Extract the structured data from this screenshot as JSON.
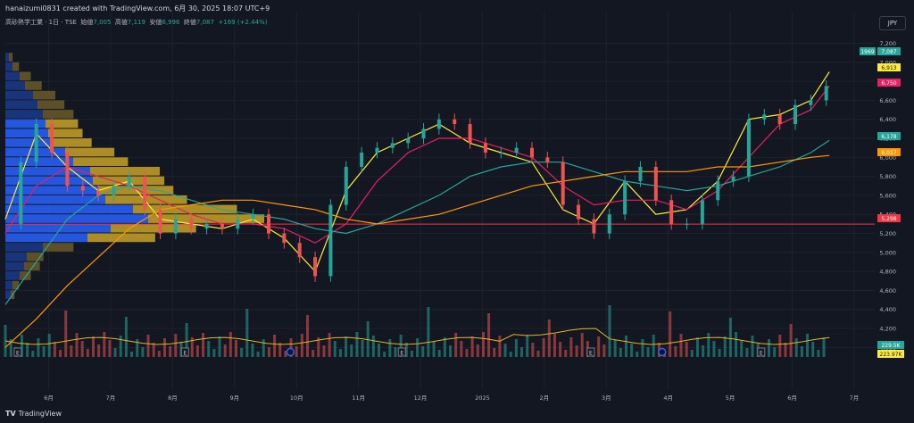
{
  "header": {
    "title": "hanaizumi0831 created with TradingView.com, 6月 30, 2025 18:07 UTC+9"
  },
  "symbol": {
    "name": "高砂熱学工業 · 1日 · TSE",
    "open_label": "始値",
    "open": "7,005",
    "high_label": "高値",
    "high": "7,119",
    "low_label": "安値",
    "low": "6,996",
    "close_label": "終値",
    "close": "7,087",
    "change": "+169 (+2.44%)"
  },
  "currency": "JPY",
  "footer": {
    "brand": "TradingView"
  },
  "colors": {
    "background": "#131722",
    "up": "#26a69a",
    "down": "#ef5350",
    "ma_fast": "#ffeb3b",
    "ma_mid": "#e91e63",
    "ma_slow": "#26a69a",
    "ma_long": "#ff9800",
    "hline": "#f23645",
    "volume_ma": "#e6b422"
  },
  "chart_data": {
    "type": "line",
    "title": "高砂熱学工業 · 1日 · TSE",
    "y_ticks": [
      4000,
      4200,
      4400,
      4600,
      4800,
      5000,
      5200,
      5400,
      5600,
      5800,
      6000,
      6200,
      6400,
      6600,
      6800,
      7000,
      7200
    ],
    "y_tick_labels": [
      "4,000",
      "4,200",
      "4,400",
      "4,600",
      "4,800",
      "5,000",
      "5,200",
      "5,400",
      "5,600",
      "5,800",
      "6,000",
      "6,200",
      "6,400",
      "6,600",
      "6,800",
      "7,000",
      "7,200"
    ],
    "ylim": [
      3900,
      7280
    ],
    "x_ticks": [
      "6月",
      "7月",
      "8月",
      "9月",
      "10月",
      "11月",
      "12月",
      "2025",
      "2月",
      "3月",
      "4月",
      "5月",
      "6月",
      "7月"
    ],
    "xlim": [
      0,
      13.6
    ],
    "close_series": {
      "name": "Close",
      "x": [
        0,
        0.25,
        0.5,
        0.75,
        1,
        1.25,
        1.5,
        1.75,
        2,
        2.25,
        2.5,
        2.75,
        3,
        3.25,
        3.5,
        3.75,
        4,
        4.25,
        4.5,
        4.75,
        5,
        5.25,
        5.5,
        5.75,
        6,
        6.25,
        6.5,
        6.75,
        7,
        7.25,
        7.5,
        7.75,
        8,
        8.25,
        8.5,
        8.75,
        9,
        9.25,
        9.5,
        9.75,
        10,
        10.25,
        10.5,
        10.75,
        11,
        11.25,
        11.5,
        11.75,
        12,
        12.25,
        12.5,
        12.75,
        13,
        13.25
      ],
      "values": [
        5300,
        5950,
        6350,
        6050,
        5700,
        5650,
        5600,
        5700,
        5800,
        5450,
        5200,
        5350,
        5250,
        5300,
        5250,
        5350,
        5400,
        5200,
        5100,
        4950,
        4750,
        5500,
        5900,
        6050,
        6100,
        6150,
        6200,
        6300,
        6400,
        6350,
        6150,
        6050,
        6050,
        6100,
        6000,
        5950,
        5500,
        5350,
        5200,
        5400,
        5750,
        5900,
        5550,
        5300,
        5300,
        5550,
        5750,
        5800,
        6400,
        6450,
        6350,
        6550,
        6600,
        6750
      ]
    },
    "series": [
      {
        "name": "MA fast",
        "color": "#ffeb3b",
        "x": [
          0,
          0.5,
          1,
          1.5,
          2,
          2.5,
          3,
          3.5,
          4,
          4.5,
          5,
          5.5,
          6,
          6.5,
          7,
          7.5,
          8,
          8.5,
          9,
          9.5,
          10,
          10.5,
          11,
          11.5,
          12,
          12.5,
          13,
          13.3
        ],
        "values": [
          5350,
          6250,
          5900,
          5650,
          5750,
          5350,
          5300,
          5250,
          5350,
          5150,
          4800,
          5650,
          6050,
          6200,
          6350,
          6150,
          6050,
          5950,
          5450,
          5300,
          5750,
          5400,
          5450,
          5750,
          6400,
          6450,
          6600,
          6900
        ]
      },
      {
        "name": "MA mid",
        "color": "#e91e63",
        "x": [
          0,
          0.5,
          1,
          1.5,
          2,
          2.5,
          3,
          3.5,
          4,
          4.5,
          5,
          5.5,
          6,
          6.5,
          7,
          7.5,
          8,
          8.5,
          9,
          9.5,
          10,
          10.5,
          11,
          11.5,
          12,
          12.5,
          13,
          13.3
        ],
        "values": [
          5200,
          5700,
          5900,
          5800,
          5700,
          5550,
          5400,
          5300,
          5300,
          5250,
          5100,
          5300,
          5750,
          6050,
          6200,
          6200,
          6100,
          6000,
          5700,
          5500,
          5550,
          5550,
          5450,
          5650,
          6000,
          6350,
          6500,
          6750
        ]
      },
      {
        "name": "MA slow",
        "color": "#26a69a",
        "x": [
          0,
          0.5,
          1,
          1.5,
          2,
          2.5,
          3,
          3.5,
          4,
          4.5,
          5,
          5.5,
          6,
          6.5,
          7,
          7.5,
          8,
          8.5,
          9,
          9.5,
          10,
          10.5,
          11,
          11.5,
          12,
          12.5,
          13,
          13.3
        ],
        "values": [
          4450,
          4900,
          5350,
          5600,
          5700,
          5650,
          5550,
          5450,
          5400,
          5350,
          5250,
          5200,
          5300,
          5450,
          5600,
          5800,
          5900,
          5950,
          5950,
          5850,
          5750,
          5700,
          5650,
          5700,
          5800,
          5900,
          6050,
          6180
        ]
      },
      {
        "name": "MA long",
        "color": "#ff9800",
        "x": [
          0,
          0.5,
          1,
          1.5,
          2,
          2.5,
          3,
          3.5,
          4,
          4.5,
          5,
          5.5,
          6,
          6.5,
          7,
          7.5,
          8,
          8.5,
          9,
          9.5,
          10,
          10.5,
          11,
          11.5,
          12,
          12.5,
          13,
          13.3
        ],
        "values": [
          4000,
          4300,
          4650,
          4950,
          5250,
          5450,
          5500,
          5550,
          5550,
          5500,
          5450,
          5350,
          5300,
          5350,
          5400,
          5500,
          5600,
          5700,
          5750,
          5800,
          5850,
          5850,
          5850,
          5900,
          5900,
          5950,
          6000,
          6020
        ]
      }
    ],
    "horizontal_line": {
      "value": 5298,
      "color": "#f23645"
    },
    "price_badges": [
      {
        "label": "1969",
        "value": "7,087",
        "color": "#26a69a"
      },
      {
        "label": "",
        "value": "6,913",
        "color": "#ffeb3b"
      },
      {
        "label": "",
        "value": "6,750",
        "color": "#e91e63"
      },
      {
        "label": "",
        "value": "6,178",
        "color": "#26a69a"
      },
      {
        "label": "",
        "value": "6,017",
        "color": "#ff9800"
      },
      {
        "label": "",
        "value": "5,298",
        "color": "#f23645"
      }
    ],
    "volume_badges": [
      {
        "value": "229.5K",
        "color": "#26a69a"
      },
      {
        "value": "223.97K",
        "color": "#ffeb3b"
      }
    ],
    "volume_profile": {
      "price_levels": [
        7050,
        6950,
        6850,
        6750,
        6650,
        6550,
        6450,
        6350,
        6250,
        6150,
        6050,
        5950,
        5850,
        5750,
        5650,
        5550,
        5450,
        5350,
        5250,
        5150,
        5050,
        4950,
        4850,
        4750,
        4650,
        4550
      ],
      "volumes": [
        8,
        15,
        28,
        40,
        55,
        65,
        75,
        80,
        85,
        95,
        120,
        135,
        170,
        175,
        185,
        200,
        255,
        285,
        210,
        165,
        75,
        42,
        38,
        28,
        15,
        10
      ],
      "value_area": [
        0,
        0,
        0,
        0,
        0,
        0,
        0,
        1,
        1,
        1,
        1,
        1,
        1,
        1,
        1,
        1,
        1,
        1,
        1,
        1,
        0,
        0,
        0,
        0,
        0,
        0
      ]
    },
    "event_markers": {
      "x": [
        0.2,
        2.9,
        4.6,
        6.4,
        9.45,
        10.6,
        12.2
      ],
      "labels": [
        "E",
        "E",
        "",
        "E",
        "E",
        "",
        "E"
      ]
    }
  }
}
